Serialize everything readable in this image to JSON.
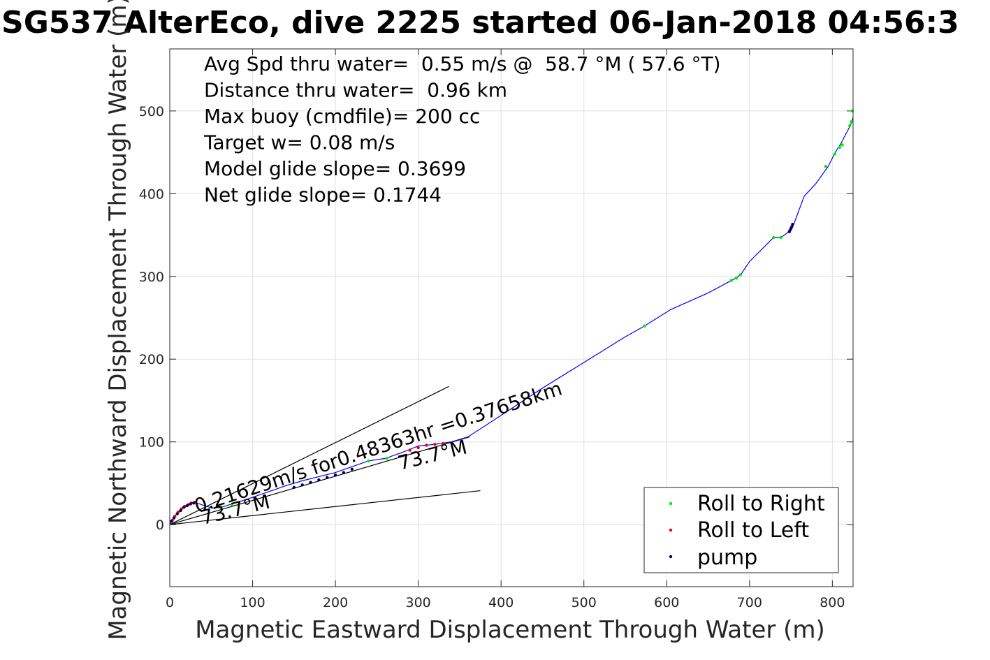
{
  "chart_data": {
    "type": "scatter",
    "title": "SG537 AlterEco, dive 2225 started 06-Jan-2018 04:56:3",
    "xlabel": "Magnetic Eastward Displacement Through Water (m)",
    "ylabel": "Magnetic Northward Displacement Through Water (m)",
    "xlim": [
      0,
      825
    ],
    "ylim": [
      -75,
      575
    ],
    "xticks": [
      0,
      100,
      200,
      300,
      400,
      500,
      600,
      700,
      800
    ],
    "yticks": [
      0,
      100,
      200,
      300,
      400,
      500
    ],
    "grid": true,
    "legend_position": "bottom-right",
    "stats": [
      "Avg Spd thru water=  0.55 m/s @  58.7 °M ( 57.6 °T)",
      "Distance thru water=  0.96 km",
      "Max buoy (cmdfile)= 200 cc",
      "Target w= 0.08 m/s",
      "Model glide slope= 0.3699",
      "Net glide slope= 0.1744"
    ],
    "annotations": [
      {
        "text": "0.21629m/s for0.48363hr =0.37658km",
        "x": 33,
        "y": 14,
        "angle": 18
      },
      {
        "text": "73.7°M",
        "x": 40,
        "y": 0,
        "angle": 14
      },
      {
        "text": "73.7°M",
        "x": 278,
        "y": 66,
        "angle": 14
      }
    ],
    "reference_lines": [
      {
        "name": "",
        "x": [
          0,
          337
        ],
        "y": [
          0,
          167
        ]
      },
      {
        "name": "",
        "x": [
          0,
          375
        ],
        "y": [
          0,
          41
        ]
      },
      {
        "name": "",
        "x": [
          0,
          362
        ],
        "y": [
          0,
          106
        ]
      }
    ],
    "series": [
      {
        "name": "",
        "type": "line",
        "color": "#0000ff",
        "x": [
          0,
          3,
          6,
          10,
          15,
          20,
          25,
          30,
          36,
          44,
          53,
          62,
          72,
          85,
          100,
          120,
          140,
          160,
          180,
          200,
          220,
          240,
          260,
          280,
          300,
          320,
          340,
          360,
          400,
          450,
          500,
          550,
          573,
          605,
          650,
          678,
          685,
          690,
          700,
          729,
          738,
          750,
          753,
          766,
          780,
          795,
          803,
          810,
          822,
          825
        ],
        "y": [
          0,
          5,
          10,
          15,
          20,
          23,
          25,
          27,
          25,
          22,
          20,
          21,
          24,
          28,
          33,
          40,
          47,
          53,
          58,
          63,
          70,
          77,
          80,
          87,
          95,
          97,
          100,
          106,
          132,
          165,
          196,
          227,
          240,
          260,
          280,
          295,
          299,
          303,
          318,
          347,
          347,
          356,
          362,
          397,
          412,
          433,
          449,
          460,
          483,
          492
        ]
      },
      {
        "name": "Roll to Right",
        "type": "scatter",
        "color": "#00ee00",
        "x": [
          62,
          75,
          240,
          262,
          573,
          678,
          684,
          689,
          729,
          738,
          792,
          803,
          809,
          812,
          821,
          823,
          824
        ],
        "y": [
          21,
          24,
          77,
          80,
          240,
          295,
          298,
          302,
          347,
          347,
          433,
          448,
          456,
          459,
          482,
          487,
          500
        ]
      },
      {
        "name": "Roll to Left",
        "type": "scatter",
        "color": "#ee0000",
        "x": [
          3,
          6,
          10,
          14,
          18,
          22,
          26,
          30,
          290,
          300,
          310,
          320,
          330
        ],
        "y": [
          5,
          10,
          15,
          19,
          22,
          24,
          26,
          27,
          90,
          93,
          96,
          97,
          98
        ]
      },
      {
        "name": "pump",
        "type": "scatter",
        "color": "#000066",
        "x": [
          2,
          5,
          9,
          13,
          17,
          21,
          25,
          29,
          150,
          160,
          170,
          180,
          190,
          200,
          210,
          220,
          748,
          749,
          750,
          751,
          752
        ],
        "y": [
          4,
          8,
          13,
          17,
          21,
          23,
          25,
          26,
          45,
          48,
          51,
          54,
          57,
          60,
          63,
          67,
          354,
          356,
          358,
          360,
          363
        ]
      }
    ]
  }
}
